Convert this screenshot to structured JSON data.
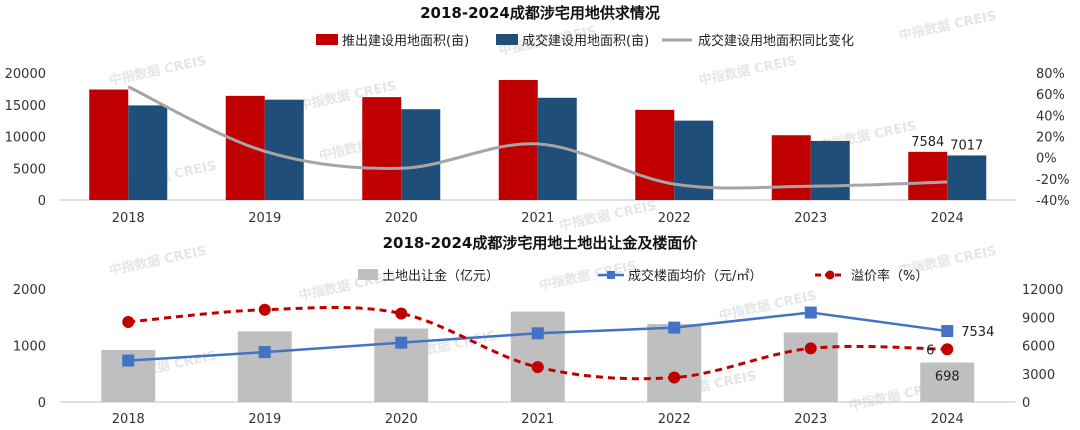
{
  "watermark": "中指数据 CREIS",
  "chart_data": [
    {
      "type": "bar",
      "title": "2018-2024成都涉宅用地供求情况",
      "categories": [
        "2018",
        "2019",
        "2020",
        "2021",
        "2022",
        "2023",
        "2024"
      ],
      "series": [
        {
          "name": "推出建设用地面积(亩)",
          "kind": "bar",
          "axis": "left",
          "color": "#C00000",
          "values": [
            17400,
            16400,
            16200,
            18900,
            14200,
            10200,
            7584
          ]
        },
        {
          "name": "成交建设用地面积(亩)",
          "kind": "bar",
          "axis": "left",
          "color": "#1F4E79",
          "values": [
            14900,
            15800,
            14300,
            16100,
            12500,
            9300,
            7017
          ]
        },
        {
          "name": "成交建设用地面积同比变化",
          "kind": "line",
          "axis": "right",
          "color": "#A6A6A6",
          "values": [
            0.67,
            0.06,
            -0.1,
            0.13,
            -0.25,
            -0.27,
            -0.23
          ]
        }
      ],
      "ylim": [
        0,
        20000
      ],
      "yticks": [
        0,
        5000,
        10000,
        15000,
        20000
      ],
      "y2lim": [
        -0.4,
        0.8
      ],
      "y2ticks": [
        "-40%",
        "-20%",
        "0%",
        "20%",
        "40%",
        "60%",
        "80%"
      ],
      "data_labels": [
        {
          "series": 0,
          "index": 6,
          "text": "7584"
        },
        {
          "series": 1,
          "index": 6,
          "text": "7017"
        }
      ],
      "legend_position": "top"
    },
    {
      "type": "bar",
      "title": "2018-2024成都涉宅用地土地出让金及楼面价",
      "categories": [
        "2018",
        "2019",
        "2020",
        "2021",
        "2022",
        "2023",
        "2024"
      ],
      "series": [
        {
          "name": "土地出让金（亿元）",
          "kind": "bar",
          "axis": "left",
          "color": "#BFBFBF",
          "values": [
            920,
            1250,
            1300,
            1600,
            1380,
            1230,
            698
          ]
        },
        {
          "name": "成交楼面均价（元/㎡）",
          "kind": "line",
          "axis": "right",
          "color": "#4472C4",
          "values": [
            4400,
            5300,
            6300,
            7300,
            7900,
            9500,
            7534
          ]
        },
        {
          "name": "溢价率（%）",
          "kind": "dashed-line",
          "axis": "right",
          "color": "#C00000",
          "values": [
            8500,
            9800,
            9400,
            3700,
            2600,
            5700,
            5600
          ]
        }
      ],
      "ylim": [
        0,
        2000
      ],
      "yticks": [
        0,
        1000,
        2000
      ],
      "y2lim": [
        0,
        12000
      ],
      "y2ticks": [
        0,
        3000,
        6000,
        9000,
        12000
      ],
      "data_labels": [
        {
          "series": 0,
          "index": 6,
          "text": "698"
        },
        {
          "series": 1,
          "index": 6,
          "text": "7534"
        },
        {
          "series": 2,
          "index": 6,
          "text": "6"
        }
      ],
      "legend_position": "top"
    }
  ]
}
